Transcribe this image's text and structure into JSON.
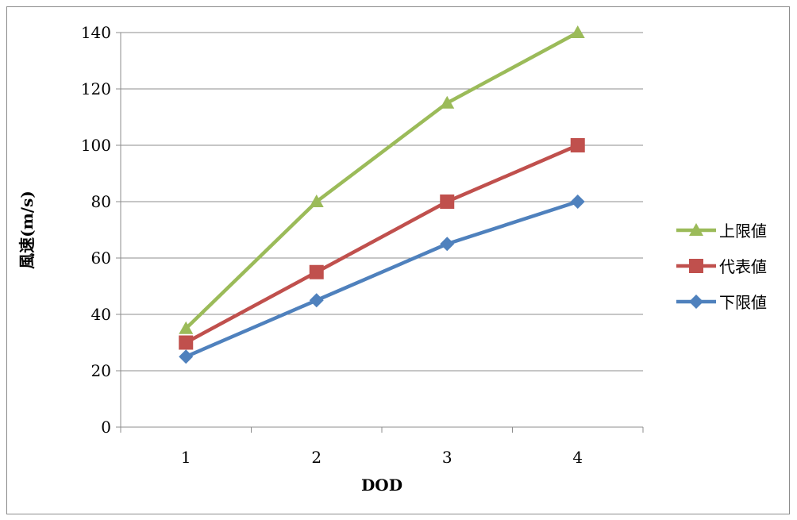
{
  "chart_data": {
    "type": "line",
    "title": "",
    "xlabel": "DOD",
    "ylabel": "風速(m/s)",
    "x": [
      1,
      2,
      3,
      4
    ],
    "ylim": [
      0,
      140
    ],
    "yticks": [
      0,
      20,
      40,
      60,
      80,
      100,
      120,
      140
    ],
    "grid": true,
    "legend_position": "right",
    "series": [
      {
        "name": "上限値",
        "values": [
          35,
          80,
          115,
          140
        ],
        "color": "#9BBB59",
        "marker": "triangle"
      },
      {
        "name": "代表値",
        "values": [
          30,
          55,
          80,
          100
        ],
        "color": "#C0504D",
        "marker": "square"
      },
      {
        "name": "下限値",
        "values": [
          25,
          45,
          65,
          80
        ],
        "color": "#4F81BD",
        "marker": "diamond"
      }
    ]
  }
}
